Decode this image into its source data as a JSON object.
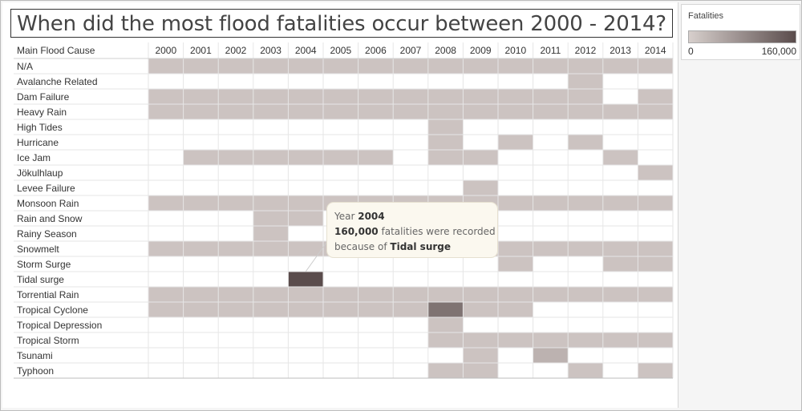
{
  "title": "When did the most flood fatalities occur between 2000 - 2014?",
  "legend": {
    "title": "Fatalities",
    "min_label": "0",
    "max_label": "160,000",
    "color_low": "#d7cfcc",
    "color_high": "#5a4c4c"
  },
  "tooltip": {
    "year_label": "Year",
    "year": "2004",
    "value": "160,000",
    "value_suffix": "fatalities were recorded",
    "cause_prefix": "because of",
    "cause": "Tidal surge"
  },
  "colors": {
    "background": "#ffffff",
    "panel": "#f5f5f5",
    "cell_low": "#d7cfcc",
    "cell_high": "#5a4c4c",
    "grid": "#e6e6e6",
    "text": "#333333"
  },
  "chart_data": {
    "type": "heatmap",
    "title": "When did the most flood fatalities occur between 2000 - 2014?",
    "row_header": "Main Flood Cause",
    "columns": [
      "2000",
      "2001",
      "2002",
      "2003",
      "2004",
      "2005",
      "2006",
      "2007",
      "2008",
      "2009",
      "2010",
      "2011",
      "2012",
      "2013",
      "2014"
    ],
    "rows": [
      "N/A",
      "Avalanche Related",
      "Dam Failure",
      "Heavy Rain",
      "High Tides",
      "Hurricane",
      "Ice Jam",
      "Jökulhlaup",
      "Levee Failure",
      "Monsoon Rain",
      "Rain and Snow",
      "Rainy Season",
      "Snowmelt",
      "Storm Surge",
      "Tidal surge",
      "Torrential Rain",
      "Tropical Cyclone",
      "Tropical Depression",
      "Tropical Storm",
      "Tsunami",
      "Typhoon"
    ],
    "color_range": [
      0,
      160000
    ],
    "values": [
      [
        2000,
        2000,
        2000,
        2000,
        2000,
        2000,
        2000,
        2000,
        2000,
        2000,
        2000,
        2000,
        2000,
        2000,
        2000
      ],
      [
        null,
        null,
        null,
        null,
        null,
        null,
        null,
        null,
        null,
        null,
        null,
        null,
        2000,
        null,
        null
      ],
      [
        2000,
        2000,
        2000,
        2000,
        2000,
        2000,
        2000,
        2000,
        2000,
        2000,
        2000,
        2000,
        2000,
        null,
        2000
      ],
      [
        2000,
        2000,
        2000,
        2000,
        2000,
        2000,
        2000,
        2000,
        2000,
        2000,
        2000,
        2000,
        2000,
        2000,
        2000
      ],
      [
        null,
        null,
        null,
        null,
        null,
        null,
        null,
        null,
        2000,
        null,
        null,
        null,
        null,
        null,
        null
      ],
      [
        null,
        null,
        null,
        null,
        null,
        null,
        null,
        null,
        2000,
        null,
        2000,
        null,
        2000,
        null,
        null
      ],
      [
        null,
        2000,
        2000,
        2000,
        2000,
        2000,
        2000,
        null,
        2000,
        2000,
        null,
        null,
        null,
        2000,
        null
      ],
      [
        null,
        null,
        null,
        null,
        null,
        null,
        null,
        null,
        null,
        null,
        null,
        null,
        null,
        null,
        2000
      ],
      [
        null,
        null,
        null,
        null,
        null,
        null,
        null,
        null,
        null,
        2000,
        null,
        null,
        null,
        null,
        null
      ],
      [
        2000,
        2000,
        2000,
        2000,
        2000,
        2000,
        2000,
        2000,
        2000,
        2000,
        2000,
        2000,
        2000,
        2000,
        2000
      ],
      [
        null,
        null,
        null,
        2000,
        2000,
        null,
        null,
        null,
        null,
        null,
        null,
        null,
        null,
        null,
        null
      ],
      [
        null,
        null,
        null,
        2000,
        null,
        null,
        null,
        null,
        null,
        null,
        null,
        null,
        null,
        null,
        null
      ],
      [
        2000,
        2000,
        2000,
        2000,
        2000,
        2000,
        2000,
        2000,
        2000,
        2000,
        2000,
        2000,
        2000,
        2000,
        2000
      ],
      [
        null,
        null,
        null,
        null,
        null,
        null,
        null,
        null,
        null,
        null,
        2000,
        null,
        null,
        2000,
        2000
      ],
      [
        null,
        null,
        null,
        null,
        160000,
        null,
        null,
        null,
        null,
        null,
        null,
        null,
        null,
        null,
        null
      ],
      [
        2000,
        2000,
        2000,
        2000,
        2000,
        2000,
        2000,
        2000,
        2000,
        2000,
        2000,
        2000,
        2000,
        2000,
        2000
      ],
      [
        2000,
        2000,
        2000,
        2000,
        2000,
        2000,
        2000,
        2000,
        84000,
        2000,
        2000,
        null,
        null,
        null,
        null
      ],
      [
        null,
        null,
        null,
        null,
        null,
        null,
        null,
        null,
        2000,
        null,
        null,
        null,
        null,
        null,
        null
      ],
      [
        null,
        null,
        null,
        null,
        null,
        null,
        null,
        null,
        2000,
        2000,
        2000,
        2000,
        2000,
        2000,
        2000
      ],
      [
        null,
        null,
        null,
        null,
        null,
        null,
        null,
        null,
        null,
        2000,
        null,
        10000,
        null,
        null,
        null
      ],
      [
        null,
        null,
        null,
        null,
        null,
        null,
        null,
        null,
        2000,
        2000,
        null,
        null,
        2000,
        null,
        2000
      ]
    ]
  }
}
